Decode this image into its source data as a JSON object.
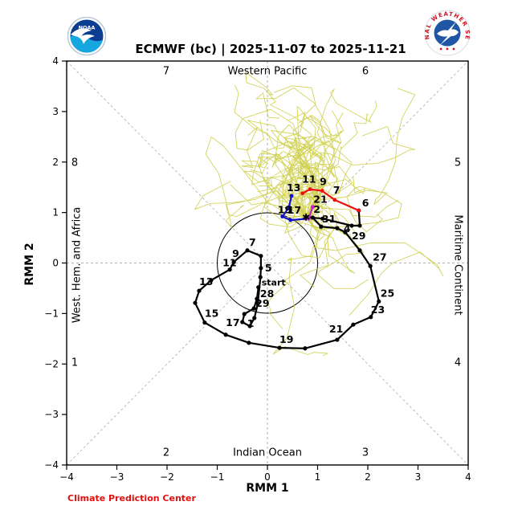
{
  "header": {
    "title": "ECMWF (bc) | 2025-11-07 to 2025-11-21",
    "noaa_logo_label": "NOAA",
    "nws_ring_text": "NATIONAL  WEATHER  SERVICE",
    "credit": "Climate Prediction Center"
  },
  "chart_data": {
    "type": "line",
    "title": "ECMWF (bc) | 2025-11-07 to 2025-11-21",
    "xlabel": "RMM 1",
    "ylabel": "RMM 2",
    "xlim": [
      -4,
      4
    ],
    "ylim": [
      -4,
      4
    ],
    "xticks": [
      -4,
      -3,
      -2,
      -1,
      0,
      1,
      2,
      3,
      4
    ],
    "yticks": [
      -4,
      -3,
      -2,
      -1,
      0,
      1,
      2,
      3,
      4
    ],
    "grid": "dashed center cross and corner-to-corner diagonals",
    "unit_circle_radius": 1,
    "region_labels": {
      "top": "Western Pacific",
      "bottom": "Indian Ocean",
      "left": "West. Hem. and Africa",
      "right": "Maritime Continent"
    },
    "phase_labels": [
      {
        "text": "7",
        "x": -2.02,
        "y": 3.79
      },
      {
        "text": "6",
        "x": 1.95,
        "y": 3.79
      },
      {
        "text": "8",
        "x": -3.84,
        "y": 2.0
      },
      {
        "text": "5",
        "x": 3.79,
        "y": 2.0
      },
      {
        "text": "1",
        "x": -3.84,
        "y": -1.98
      },
      {
        "text": "4",
        "x": 3.79,
        "y": -1.98
      },
      {
        "text": "2",
        "x": -2.02,
        "y": -3.76
      },
      {
        "text": "3",
        "x": 1.95,
        "y": -3.76
      }
    ],
    "series": [
      {
        "name": "observed-rmm",
        "color": "#000000",
        "width": 2.2,
        "dot": 2.6,
        "points": [
          {
            "x": -0.18,
            "y": -0.48,
            "l": "start",
            "dx": 4,
            "dy": -2
          },
          {
            "x": -0.21,
            "y": -0.71,
            "l": "28",
            "dx": 4,
            "dy": -2
          },
          {
            "x": -0.27,
            "y": -0.9,
            "l": "29",
            "dx": 2,
            "dy": -2
          },
          {
            "x": -0.46,
            "y": -1.01
          },
          {
            "x": -0.5,
            "y": -1.17,
            "l": "1",
            "dx": 6,
            "dy": 6
          },
          {
            "x": -0.35,
            "y": -1.25
          },
          {
            "x": -0.26,
            "y": -1.09
          },
          {
            "x": -0.19,
            "y": -0.8
          },
          {
            "x": -0.14,
            "y": -0.28
          },
          {
            "x": -0.13,
            "y": -0.1,
            "l": "5",
            "dx": 5,
            "dy": 4
          },
          {
            "x": -0.13,
            "y": 0.14
          },
          {
            "x": -0.4,
            "y": 0.25,
            "l": "7",
            "dx": 2,
            "dy": -6
          },
          {
            "x": -0.67,
            "y": 0.02,
            "l": "9",
            "dx": -2,
            "dy": -6
          },
          {
            "x": -0.75,
            "y": -0.13,
            "l": "11",
            "dx": -9,
            "dy": -4
          },
          {
            "x": -1.12,
            "y": -0.34
          },
          {
            "x": -1.36,
            "y": -0.55,
            "l": "13",
            "dx": 0,
            "dy": -7
          },
          {
            "x": -1.44,
            "y": -0.79
          },
          {
            "x": -1.25,
            "y": -1.18,
            "l": "15",
            "dx": 0,
            "dy": -7
          },
          {
            "x": -0.83,
            "y": -1.42,
            "l": "17",
            "dx": 0,
            "dy": -11
          },
          {
            "x": -0.37,
            "y": -1.58
          },
          {
            "x": 0.24,
            "y": -1.68,
            "l": "19",
            "dx": 0,
            "dy": -6
          },
          {
            "x": 0.75,
            "y": -1.69
          },
          {
            "x": 1.39,
            "y": -1.52,
            "l": "21",
            "dx": -10,
            "dy": -9
          },
          {
            "x": 1.71,
            "y": -1.22
          },
          {
            "x": 2.06,
            "y": -1.07,
            "l": "23",
            "dx": 0,
            "dy": -5
          },
          {
            "x": 2.22,
            "y": -0.76,
            "l": "25",
            "dx": 2,
            "dy": -6
          },
          {
            "x": 2.05,
            "y": -0.06,
            "l": "27",
            "dx": 3,
            "dy": -7
          },
          {
            "x": 1.84,
            "y": 0.25,
            "l": "29",
            "dx": -10,
            "dy": -14
          },
          {
            "x": 1.55,
            "y": 0.61
          },
          {
            "x": 1.39,
            "y": 0.69,
            "l": "4",
            "dx": 8,
            "dy": 5
          },
          {
            "x": 1.07,
            "y": 0.72,
            "l": "31",
            "dx": 1,
            "dy": -5
          },
          {
            "x": 0.9,
            "y": 0.9,
            "l": "2",
            "dx": 1,
            "dy": -6
          },
          {
            "x": 0.77,
            "y": 0.91
          },
          {
            "x": 1.1,
            "y": 0.88
          },
          {
            "x": 1.68,
            "y": 0.74
          },
          {
            "x": 1.84,
            "y": 0.74
          },
          {
            "x": 1.82,
            "y": 1.04,
            "l": "6",
            "dx": 4,
            "dy": -5
          }
        ]
      },
      {
        "name": "forecast-week1",
        "color": "#ee1111",
        "width": 2.2,
        "dot": 2.4,
        "points": [
          {
            "x": 1.82,
            "y": 1.04
          },
          {
            "x": 1.34,
            "y": 1.25,
            "l": "7",
            "dx": -2,
            "dy": -8
          },
          {
            "x": 1.09,
            "y": 1.43,
            "l": "9",
            "dx": -3,
            "dy": -7
          },
          {
            "x": 0.85,
            "y": 1.46,
            "l": "11",
            "dx": -10,
            "dy": -8
          },
          {
            "x": 0.7,
            "y": 1.38
          }
        ]
      },
      {
        "name": "forecast-week2",
        "color": "#1111cc",
        "width": 2.2,
        "dot": 2.4,
        "points": [
          {
            "x": 0.48,
            "y": 1.33,
            "l": "13",
            "dx": -6,
            "dy": -6
          },
          {
            "x": 0.43,
            "y": 1.11
          },
          {
            "x": 0.3,
            "y": 0.92,
            "l": "19",
            "dx": -6,
            "dy": -4
          },
          {
            "x": 0.46,
            "y": 0.85,
            "l": "17",
            "dx": -4,
            "dy": -8
          },
          {
            "x": 0.82,
            "y": 0.88
          }
        ]
      },
      {
        "name": "forecast-tail",
        "color": "#cc22cc",
        "width": 2.2,
        "dot": 2.4,
        "points": [
          {
            "x": 0.82,
            "y": 0.88
          },
          {
            "x": 0.9,
            "y": 1.11,
            "l": "21",
            "dx": 1,
            "dy": -5
          }
        ]
      }
    ],
    "start_marker": {
      "x": 0.77,
      "y": 0.91,
      "shape": "asterisk",
      "color": "#000000"
    },
    "ensemble": {
      "name": "ensemble-members",
      "color": "#cfcf4f",
      "width": 0.9,
      "count": 46,
      "steps": 13,
      "seed": 11,
      "start": {
        "x": 0.77,
        "y": 0.91
      },
      "cluster_region": {
        "x": [
          -0.9,
          1.7
        ],
        "y": [
          0.3,
          2.9
        ]
      }
    },
    "legend": []
  }
}
